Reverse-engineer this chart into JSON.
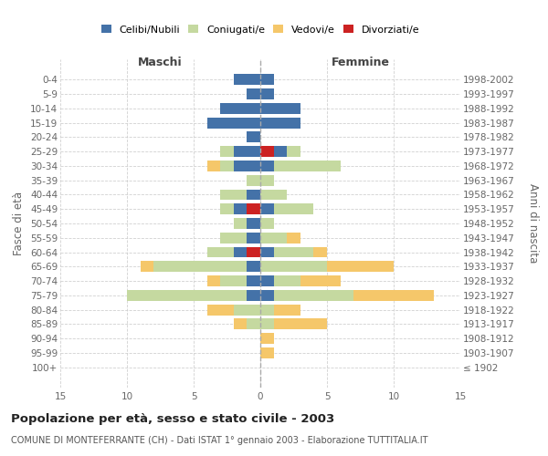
{
  "age_groups": [
    "0-4",
    "5-9",
    "10-14",
    "15-19",
    "20-24",
    "25-29",
    "30-34",
    "35-39",
    "40-44",
    "45-49",
    "50-54",
    "55-59",
    "60-64",
    "65-69",
    "70-74",
    "75-79",
    "80-84",
    "85-89",
    "90-94",
    "95-99",
    "100+"
  ],
  "birth_years": [
    "1998-2002",
    "1993-1997",
    "1988-1992",
    "1983-1987",
    "1978-1982",
    "1973-1977",
    "1968-1972",
    "1963-1967",
    "1958-1962",
    "1953-1957",
    "1948-1952",
    "1943-1947",
    "1938-1942",
    "1933-1937",
    "1928-1932",
    "1923-1927",
    "1918-1922",
    "1913-1917",
    "1908-1912",
    "1903-1907",
    "≤ 1902"
  ],
  "males_celibi": [
    2,
    1,
    3,
    4,
    1,
    2,
    2,
    0,
    1,
    1,
    1,
    1,
    1,
    1,
    1,
    1,
    0,
    0,
    0,
    0,
    0
  ],
  "males_coniugati": [
    0,
    0,
    0,
    0,
    0,
    1,
    1,
    1,
    2,
    1,
    1,
    2,
    2,
    7,
    2,
    9,
    2,
    1,
    0,
    0,
    0
  ],
  "males_vedovi": [
    0,
    0,
    0,
    0,
    0,
    0,
    1,
    0,
    0,
    0,
    0,
    0,
    0,
    1,
    1,
    0,
    2,
    1,
    0,
    0,
    0
  ],
  "males_divorziati": [
    0,
    0,
    0,
    0,
    0,
    0,
    0,
    0,
    0,
    1,
    0,
    0,
    1,
    0,
    0,
    0,
    0,
    0,
    0,
    0,
    0
  ],
  "females_nubili": [
    1,
    1,
    3,
    3,
    0,
    1,
    1,
    0,
    0,
    1,
    0,
    0,
    1,
    0,
    1,
    1,
    0,
    0,
    0,
    0,
    0
  ],
  "females_coniugate": [
    0,
    0,
    0,
    0,
    0,
    1,
    5,
    1,
    2,
    3,
    1,
    2,
    3,
    5,
    2,
    6,
    1,
    1,
    0,
    0,
    0
  ],
  "females_vedove": [
    0,
    0,
    0,
    0,
    0,
    0,
    0,
    0,
    0,
    0,
    0,
    1,
    1,
    5,
    3,
    6,
    2,
    4,
    1,
    1,
    0
  ],
  "females_divorziate": [
    0,
    0,
    0,
    0,
    0,
    1,
    0,
    0,
    0,
    0,
    0,
    0,
    0,
    0,
    0,
    0,
    0,
    0,
    0,
    0,
    0
  ],
  "color_celibi": "#4472a8",
  "color_coniugati": "#c5d9a0",
  "color_vedovi": "#f5c76a",
  "color_divorziati": "#cc2222",
  "xlim": 15,
  "title": "Popolazione per età, sesso e stato civile - 2003",
  "subtitle": "COMUNE DI MONTEFERRANTE (CH) - Dati ISTAT 1° gennaio 2003 - Elaborazione TUTTITALIA.IT",
  "ylabel_left": "Fasce di età",
  "ylabel_right": "Anni di nascita",
  "label_maschi": "Maschi",
  "label_femmine": "Femmine",
  "legend_labels": [
    "Celibi/Nubili",
    "Coniugati/e",
    "Vedovi/e",
    "Divorziati/e"
  ],
  "bg_color": "#ffffff",
  "grid_color": "#cccccc"
}
